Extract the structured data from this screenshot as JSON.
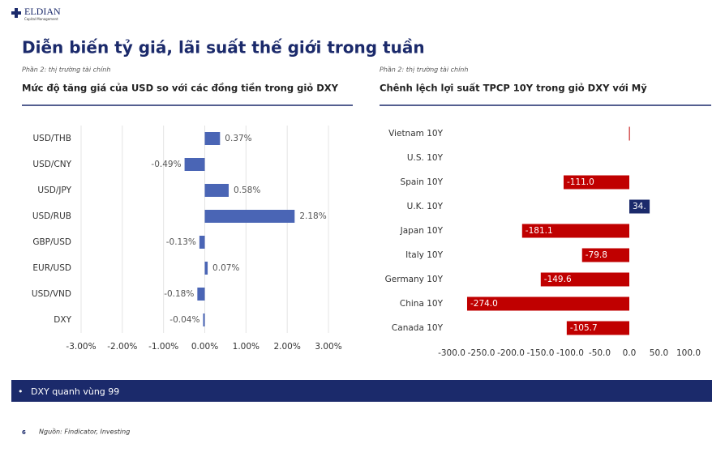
{
  "header": {
    "logo": "ELDIAN",
    "logo_sub": "Capital Management",
    "title": "Diễn biến tỷ giá, lãi suất thế giới trong tuần"
  },
  "chart_data": [
    {
      "type": "hbar",
      "subtitle": "Phần 2: thị trường tài chính",
      "title": "Mức độ tăng giá của USD so với các đồng tiền trong giỏ DXY",
      "categories": [
        "USD/THB",
        "USD/CNY",
        "USD/JPY",
        "USD/RUB",
        "GBP/USD",
        "EUR/USD",
        "USD/VND",
        "DXY"
      ],
      "values": [
        0.37,
        -0.49,
        0.58,
        2.18,
        -0.13,
        0.07,
        -0.18,
        -0.04
      ],
      "value_labels": [
        "0.37%",
        "-0.49%",
        "0.58%",
        "2.18%",
        "-0.13%",
        "0.07%",
        "-0.18%",
        "-0.04%"
      ],
      "color": "#4a65b5",
      "grid": true,
      "xlim": [
        -3,
        3
      ],
      "xticks": [
        {
          "value": -3,
          "label": "-3.00%"
        },
        {
          "value": -2,
          "label": "-2.00%"
        },
        {
          "value": -1,
          "label": "-1.00%"
        },
        {
          "value": 0,
          "label": "0.00%"
        },
        {
          "value": 1,
          "label": "1.00%"
        },
        {
          "value": 2,
          "label": "2.00%"
        },
        {
          "value": 3,
          "label": "3.00%"
        }
      ]
    },
    {
      "type": "hbar",
      "subtitle": "Phần 2: thị trường tài chính",
      "title": "Chênh lệch lợi suất TPCP 10Y trong giỏ DXY với Mỹ",
      "categories": [
        "Vietnam 10Y",
        "U.S. 10Y",
        "Spain 10Y",
        "U.K. 10Y",
        "Japan 10Y",
        "Italy 10Y",
        "Germany 10Y",
        "China 10Y",
        "Canada 10Y"
      ],
      "values": [
        -0.5,
        0,
        -111.0,
        34.4,
        -181.1,
        -79.8,
        -149.6,
        -274.0,
        -105.7
      ],
      "value_labels": [
        null,
        null,
        "-111.0",
        "34.",
        "-181.1",
        "-79.8",
        "-149.6",
        "-274.0",
        "-105.7"
      ],
      "negative_color": "#c00000",
      "positive_color": "#1b2a6b",
      "grid": false,
      "xlim": [
        -300,
        100
      ],
      "xticks": [
        {
          "value": -300,
          "label": "-300.0"
        },
        {
          "value": -250,
          "label": "-250.0"
        },
        {
          "value": -200,
          "label": "-200.0"
        },
        {
          "value": -150,
          "label": "-150.0"
        },
        {
          "value": -100,
          "label": "-100.0"
        },
        {
          "value": -50,
          "label": "-50.0"
        },
        {
          "value": 0,
          "label": "0.0"
        },
        {
          "value": 50,
          "label": "50.0"
        },
        {
          "value": 100,
          "label": "100.0"
        }
      ]
    }
  ],
  "banner": "DXY quanh vùng 99",
  "footer": {
    "page": "6",
    "source": "Nguồn: Findicator, Investing"
  }
}
